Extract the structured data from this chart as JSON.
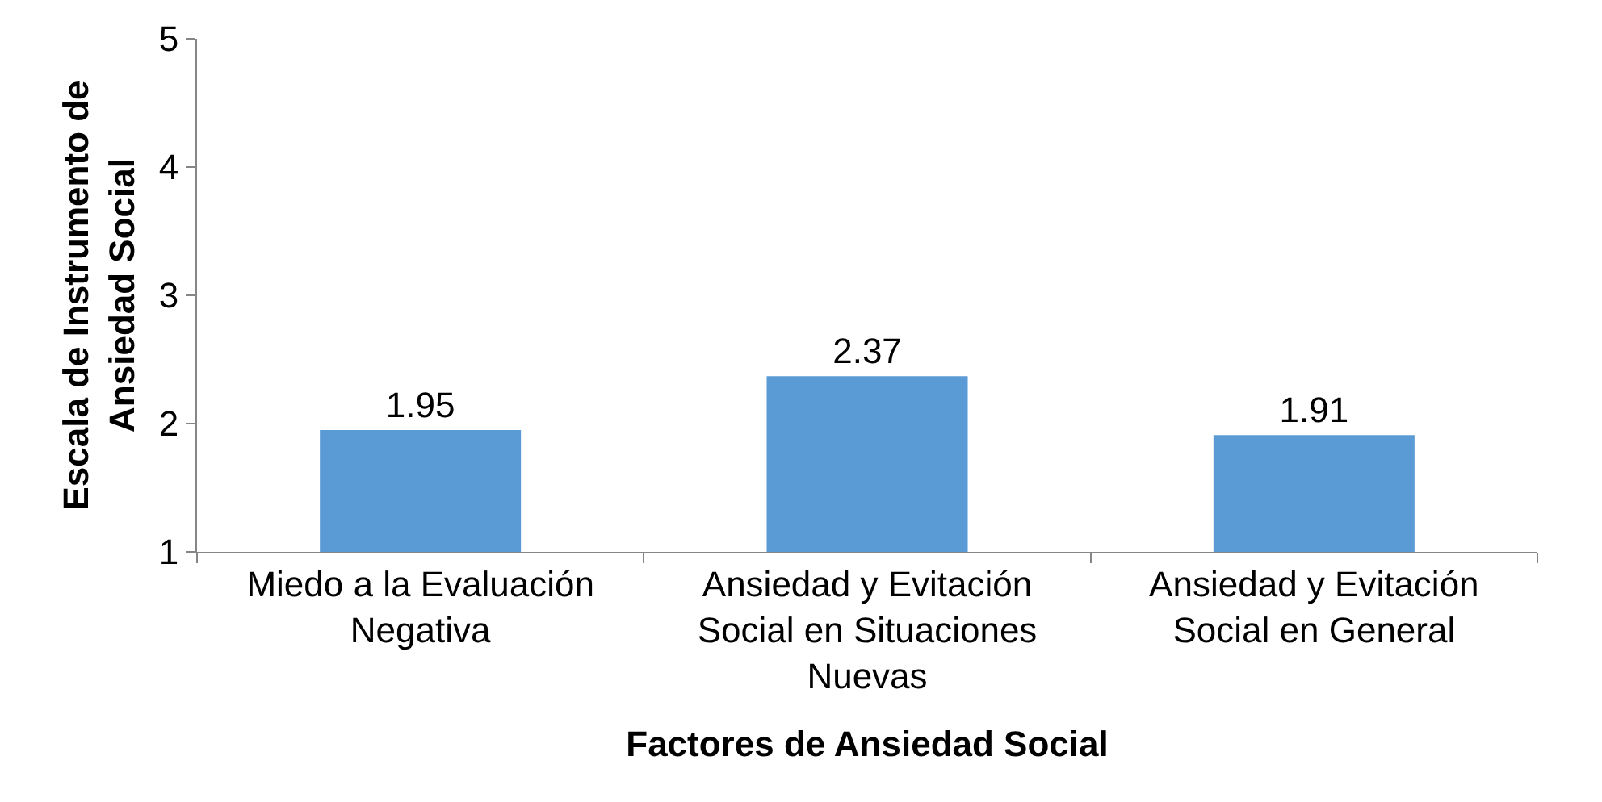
{
  "chart_data": {
    "type": "bar",
    "categories": [
      "Miedo a la Evaluación Negativa",
      "Ansiedad y Evitación Social en Situaciones Nuevas",
      "Ansiedad y Evitación Social en General"
    ],
    "values": [
      1.95,
      2.37,
      1.91
    ],
    "color": "#5b9bd5",
    "xlabel": "Factores de Ansiedad Social",
    "ylabel": "Escala de Instrumento de Ansiedad Social",
    "ylim": [
      1,
      5
    ],
    "yticks": [
      1,
      2,
      3,
      4,
      5
    ],
    "data_labels": true
  }
}
